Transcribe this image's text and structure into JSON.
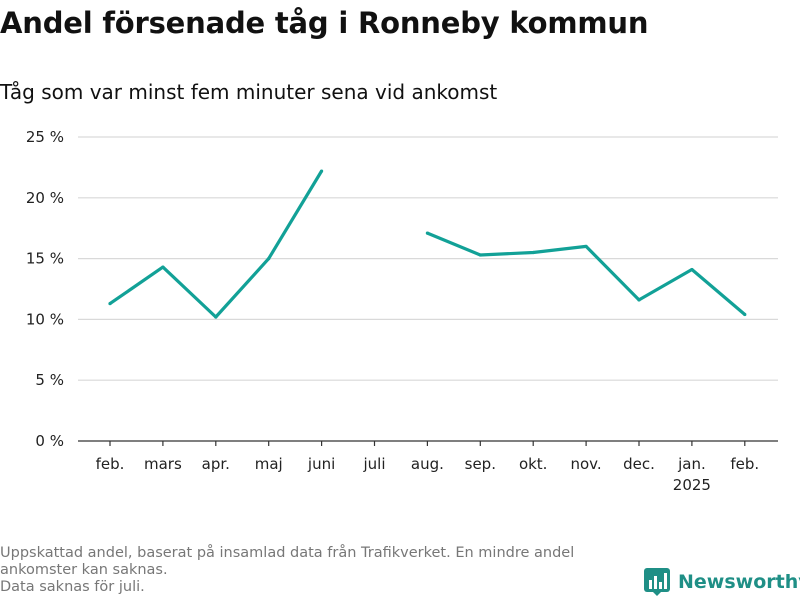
{
  "header": {
    "title": "Andel försenade tåg i Ronneby kommun",
    "subtitle": "Tåg som var minst fem minuter sena vid ankomst"
  },
  "footer": {
    "note_line1": "Uppskattad andel, baserat på insamlad data från Trafikverket. En mindre andel",
    "note_line2": "ankomster kan saknas.",
    "note_line3": "Data saknas för juli."
  },
  "brand": {
    "name": "Newsworthy",
    "icon": "bar-chart-logo-icon",
    "color": "#1f8f86"
  },
  "chart_data": {
    "type": "line",
    "categories": [
      "feb.",
      "mars",
      "apr.",
      "maj",
      "juni",
      "juli",
      "aug.",
      "sep.",
      "okt.",
      "nov.",
      "dec.",
      "jan.",
      "feb."
    ],
    "category_sublabels": [
      "",
      "",
      "",
      "",
      "",
      "",
      "",
      "",
      "",
      "",
      "",
      "2025",
      ""
    ],
    "series": [
      {
        "values": [
          11.3,
          14.3,
          10.2,
          15.0,
          22.2,
          null,
          17.1,
          15.3,
          15.5,
          16.0,
          11.6,
          14.1,
          10.4
        ],
        "color": "#12a197"
      }
    ],
    "ylim": [
      0,
      25
    ],
    "yticks": [
      0,
      5,
      10,
      15,
      20,
      25
    ],
    "ytick_labels": [
      "0 %",
      "5 %",
      "10 %",
      "15 %",
      "20 %",
      "25 %"
    ],
    "grid": true
  }
}
